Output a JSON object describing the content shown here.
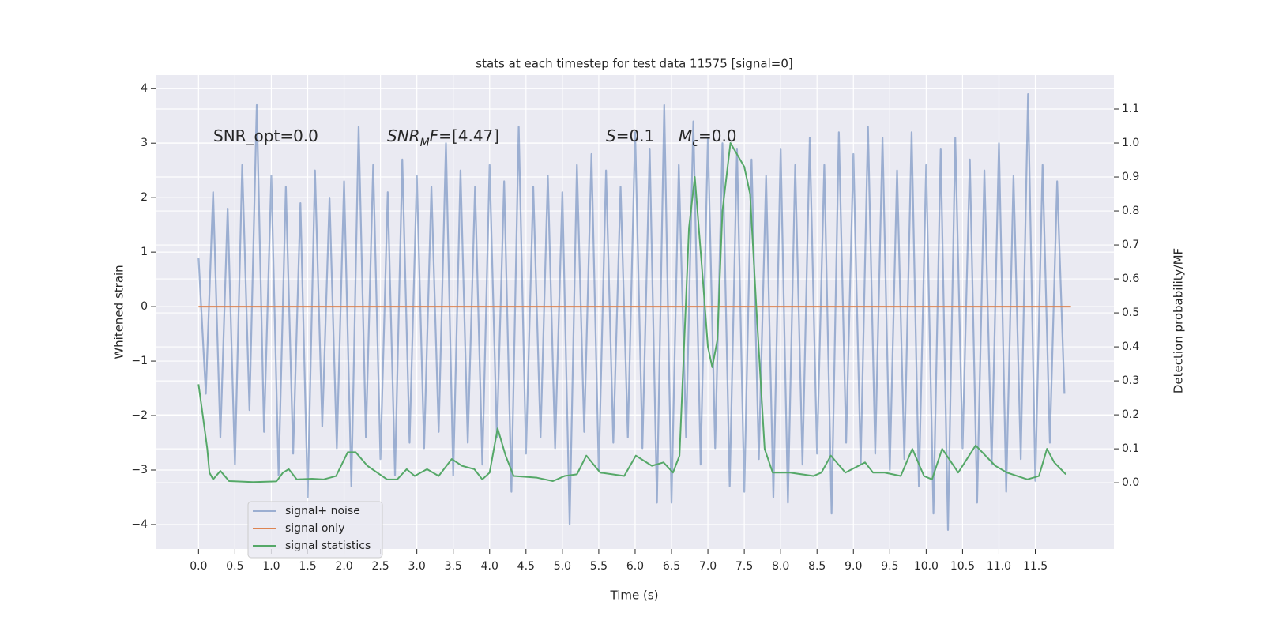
{
  "chart_data": {
    "type": "line",
    "title": "stats at each timestep for test data 11575 [signal=0]",
    "xlabel": "Time (s)",
    "ylabel": "Whitened strain",
    "y2label": "Detection probability/MF",
    "xlim": [
      -0.59,
      12.58
    ],
    "ylim": [
      -4.45,
      4.25
    ],
    "y2lim": [
      -0.195,
      1.2
    ],
    "grid": true,
    "background": "#eaeaf2",
    "legend": "lower left",
    "xticks": [
      {
        "value": 0,
        "label": "0.0"
      },
      {
        "value": 0.5,
        "label": "0.5"
      },
      {
        "value": 1,
        "label": "1.0"
      },
      {
        "value": 1.5,
        "label": "1.5"
      },
      {
        "value": 2,
        "label": "2.0"
      },
      {
        "value": 2.5,
        "label": "2.5"
      },
      {
        "value": 3,
        "label": "3.0"
      },
      {
        "value": 3.5,
        "label": "3.5"
      },
      {
        "value": 4,
        "label": "4.0"
      },
      {
        "value": 4.5,
        "label": "4.5"
      },
      {
        "value": 5,
        "label": "5.0"
      },
      {
        "value": 5.5,
        "label": "5.5"
      },
      {
        "value": 6,
        "label": "6.0"
      },
      {
        "value": 6.5,
        "label": "6.5"
      },
      {
        "value": 7,
        "label": "7.0"
      },
      {
        "value": 7.5,
        "label": "7.5"
      },
      {
        "value": 8,
        "label": "8.0"
      },
      {
        "value": 8.5,
        "label": "8.5"
      },
      {
        "value": 9,
        "label": "9.0"
      },
      {
        "value": 9.5,
        "label": "9.5"
      },
      {
        "value": 10,
        "label": "10.0"
      },
      {
        "value": 10.5,
        "label": "10.5"
      },
      {
        "value": 11,
        "label": "11.0"
      },
      {
        "value": 11.5,
        "label": "11.5"
      }
    ],
    "yticks": [
      {
        "value": -4,
        "label": "−4"
      },
      {
        "value": -3,
        "label": "−3"
      },
      {
        "value": -2,
        "label": "−2"
      },
      {
        "value": -1,
        "label": "−1"
      },
      0,
      1,
      2,
      3,
      4
    ],
    "y2ticks": [
      {
        "value": 0,
        "label": "0.0"
      },
      {
        "value": 0.1,
        "label": "0.1"
      },
      {
        "value": 0.2,
        "label": "0.2"
      },
      {
        "value": 0.3,
        "label": "0.3"
      },
      {
        "value": 0.4,
        "label": "0.4"
      },
      {
        "value": 0.5,
        "label": "0.5"
      },
      {
        "value": 0.6,
        "label": "0.6"
      },
      {
        "value": 0.7,
        "label": "0.7"
      },
      {
        "value": 0.8,
        "label": "0.8"
      },
      {
        "value": 0.9,
        "label": "0.9"
      },
      {
        "value": 1,
        "label": "1.0"
      },
      {
        "value": 1.1,
        "label": "1.1"
      }
    ],
    "annotations": [
      [
        {
          "text": "SNR_opt=0.0",
          "style": "normal"
        }
      ],
      [
        {
          "text": "SNR",
          "style": "italic"
        },
        {
          "text": "M",
          "style": "sub"
        },
        {
          "text": "F",
          "style": "italic"
        },
        {
          "text": "=[4.47]",
          "style": "normal"
        }
      ],
      [
        {
          "text": "S",
          "style": "italic"
        },
        {
          "text": "=0.1",
          "style": "normal"
        }
      ],
      [
        {
          "text": "M",
          "style": "italic"
        },
        {
          "text": "c",
          "style": "sub"
        },
        {
          "text": "=0.0",
          "style": "normal"
        }
      ]
    ],
    "series": [
      {
        "name": "signal+ noise",
        "color": "#4c72b0",
        "alpha": 0.5,
        "x": [
          0,
          0.1,
          0.2,
          0.3,
          0.4,
          0.5,
          0.6,
          0.7,
          0.8,
          0.9,
          1,
          1.1,
          1.2,
          1.3,
          1.4,
          1.5,
          1.6,
          1.7,
          1.8,
          1.9,
          2,
          2.1,
          2.2,
          2.3,
          2.4,
          2.5,
          2.6,
          2.7,
          2.8,
          2.9,
          3,
          3.1,
          3.2,
          3.3,
          3.4,
          3.5,
          3.6,
          3.7,
          3.8,
          3.9,
          4,
          4.1,
          4.2,
          4.3,
          4.4,
          4.5,
          4.6,
          4.7,
          4.8,
          4.9,
          5,
          5.1,
          5.2,
          5.3,
          5.4,
          5.5,
          5.6,
          5.7,
          5.8,
          5.9,
          6,
          6.1,
          6.2,
          6.3,
          6.4,
          6.5,
          6.6,
          6.7,
          6.8,
          6.9,
          7,
          7.1,
          7.2,
          7.3,
          7.4,
          7.5,
          7.6,
          7.7,
          7.8,
          7.9,
          8,
          8.1,
          8.2,
          8.3,
          8.4,
          8.5,
          8.6,
          8.7,
          8.8,
          8.9,
          9,
          9.1,
          9.2,
          9.3,
          9.4,
          9.5,
          9.6,
          9.7,
          9.8,
          9.9,
          10,
          10.1,
          10.2,
          10.3,
          10.4,
          10.5,
          10.6,
          10.7,
          10.8,
          10.9,
          11,
          11.1,
          11.2,
          11.3,
          11.4,
          11.5,
          11.6,
          11.7,
          11.8,
          11.9
        ],
        "values": [
          0.9,
          -1.6,
          2.1,
          -2.4,
          1.8,
          -2.9,
          2.6,
          -1.9,
          3.7,
          -2.3,
          2.4,
          -3.1,
          2.2,
          -2.7,
          1.9,
          -3.5,
          2.5,
          -2.2,
          2.0,
          -2.6,
          2.3,
          -3.3,
          3.3,
          -2.4,
          2.6,
          -2.8,
          2.1,
          -3.1,
          2.7,
          -2.5,
          2.4,
          -2.6,
          2.2,
          -2.3,
          3.0,
          -3.1,
          2.5,
          -2.5,
          2.2,
          -2.9,
          2.6,
          -2.4,
          2.3,
          -3.4,
          3.3,
          -2.7,
          2.2,
          -2.4,
          2.4,
          -2.6,
          2.1,
          -4.0,
          2.6,
          -2.3,
          2.8,
          -3.0,
          2.5,
          -2.5,
          2.2,
          -2.4,
          3.2,
          -2.6,
          2.9,
          -3.6,
          3.7,
          -3.6,
          2.6,
          -2.4,
          3.4,
          -2.9,
          3.1,
          -2.6,
          3.0,
          -3.3,
          2.9,
          -3.4,
          2.7,
          -2.8,
          2.4,
          -3.5,
          2.9,
          -3.6,
          2.6,
          -2.9,
          3.1,
          -2.7,
          2.6,
          -3.8,
          3.2,
          -2.5,
          2.8,
          -2.9,
          3.3,
          -2.7,
          3.1,
          -3.0,
          2.5,
          -2.8,
          3.2,
          -3.3,
          2.6,
          -3.8,
          2.9,
          -4.1,
          3.1,
          -2.6,
          2.7,
          -3.6,
          2.5,
          -2.9,
          3.0,
          -3.4,
          2.4,
          -2.8,
          3.9,
          -3.2,
          2.6,
          -2.5,
          2.3,
          -1.6
        ]
      },
      {
        "name": "signal only",
        "color": "#dd8452",
        "alpha": 1,
        "x": [
          0,
          11.99
        ],
        "values": [
          0,
          0
        ]
      },
      {
        "name": "signal statistics",
        "color": "#55a868",
        "alpha": 1,
        "axis": "y2",
        "x": [
          0,
          0.12,
          0.15,
          0.2,
          0.3,
          0.42,
          0.75,
          1.07,
          1.16,
          1.24,
          1.35,
          1.56,
          1.72,
          1.89,
          2.05,
          2.16,
          2.32,
          2.59,
          2.73,
          2.86,
          2.97,
          3.14,
          3.3,
          3.48,
          3.62,
          3.79,
          3.9,
          4.0,
          4.11,
          4.22,
          4.33,
          4.65,
          4.87,
          5.03,
          5.2,
          5.33,
          5.52,
          5.85,
          6.01,
          6.23,
          6.39,
          6.52,
          6.61,
          6.74,
          6.82,
          6.93,
          7.0,
          7.06,
          7.13,
          7.2,
          7.31,
          7.5,
          7.58,
          7.67,
          7.78,
          7.89,
          8.13,
          8.45,
          8.56,
          8.69,
          8.89,
          9.16,
          9.27,
          9.43,
          9.65,
          9.81,
          9.97,
          10.08,
          10.22,
          10.44,
          10.68,
          10.95,
          11.11,
          11.39,
          11.55,
          11.66,
          11.76,
          11.92
        ],
        "values": [
          0.29,
          0.1,
          0.03,
          0.01,
          0.035,
          0.005,
          0.002,
          0.004,
          0.03,
          0.04,
          0.01,
          0.012,
          0.01,
          0.02,
          0.09,
          0.09,
          0.05,
          0.01,
          0.01,
          0.04,
          0.02,
          0.04,
          0.02,
          0.07,
          0.05,
          0.04,
          0.01,
          0.03,
          0.16,
          0.08,
          0.02,
          0.015,
          0.005,
          0.02,
          0.025,
          0.08,
          0.03,
          0.02,
          0.08,
          0.05,
          0.06,
          0.03,
          0.08,
          0.75,
          0.9,
          0.6,
          0.4,
          0.34,
          0.42,
          0.8,
          1.0,
          0.93,
          0.85,
          0.5,
          0.1,
          0.03,
          0.03,
          0.02,
          0.03,
          0.08,
          0.03,
          0.06,
          0.03,
          0.03,
          0.02,
          0.1,
          0.02,
          0.01,
          0.1,
          0.03,
          0.11,
          0.05,
          0.03,
          0.01,
          0.02,
          0.1,
          0.06,
          0.025
        ]
      }
    ]
  }
}
